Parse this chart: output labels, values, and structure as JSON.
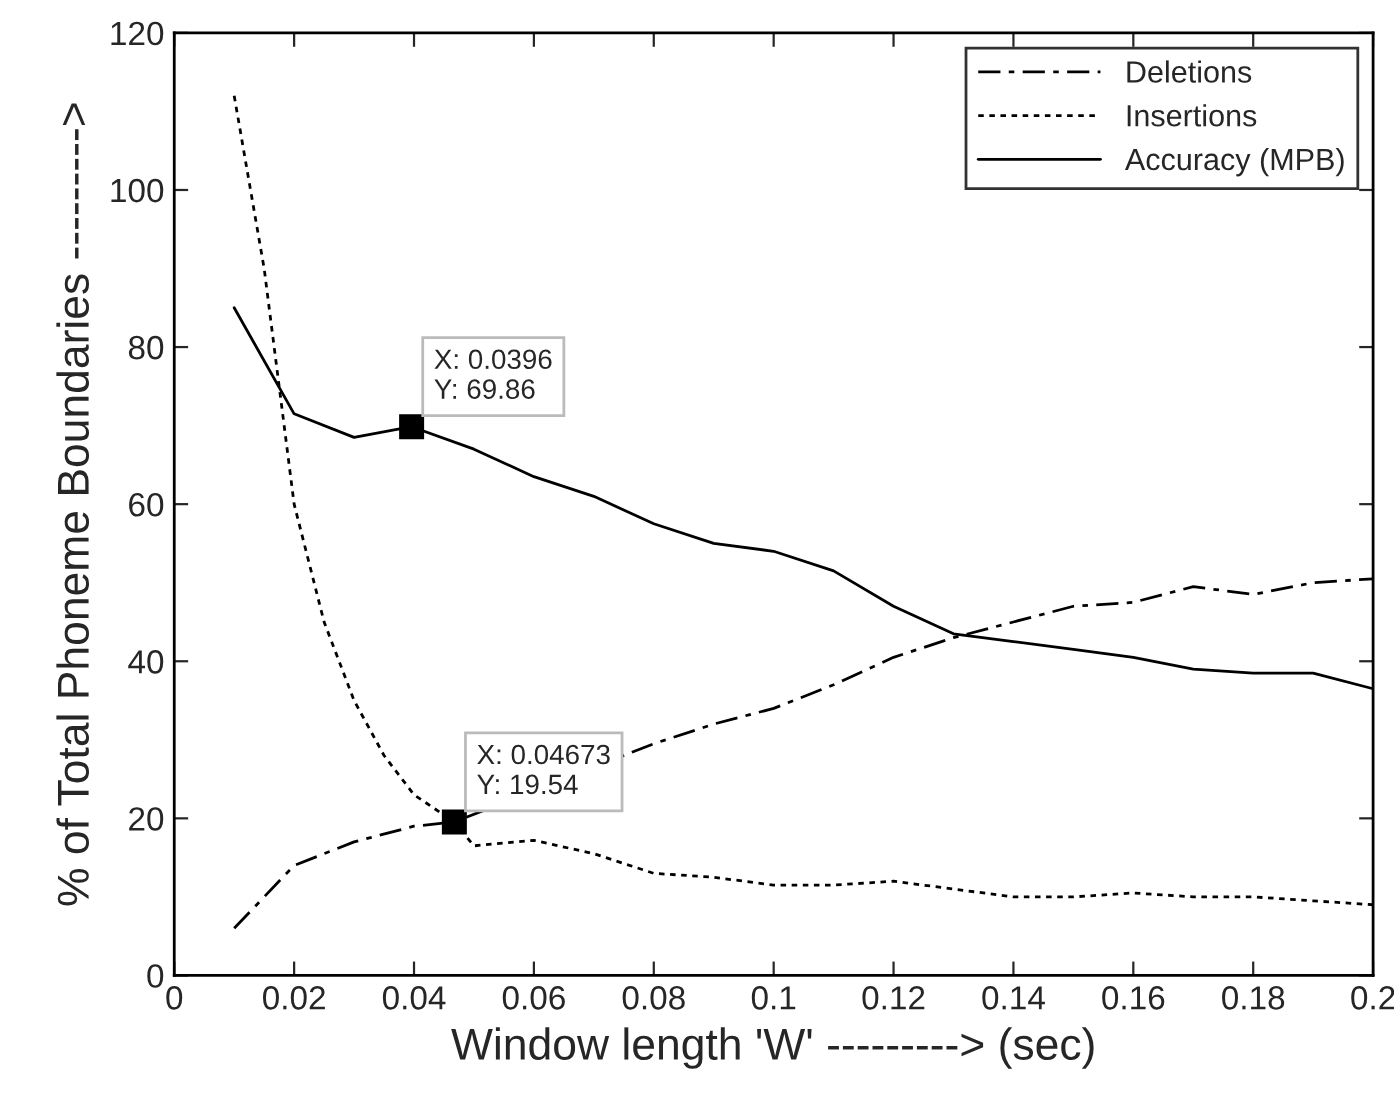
{
  "chart_data": {
    "type": "line",
    "xlabel": "Window length 'W' ---------> (sec)",
    "ylabel": "% of Total Phoneme Boundaries --------->",
    "xlim": [
      0,
      0.2
    ],
    "ylim": [
      0,
      120
    ],
    "xticks": [
      0,
      0.02,
      0.04,
      0.06,
      0.08,
      0.1,
      0.12,
      0.14,
      0.16,
      0.18,
      0.2
    ],
    "yticks": [
      0,
      20,
      40,
      60,
      80,
      100,
      120
    ],
    "grid": false,
    "legend": "top right",
    "marker": "none",
    "series": [
      {
        "name": "Deletions",
        "color": "#000000",
        "line_style": "dashdot",
        "x": [
          0.01,
          0.02,
          0.03,
          0.04,
          0.04673,
          0.05,
          0.06,
          0.07,
          0.08,
          0.09,
          0.1,
          0.11,
          0.12,
          0.13,
          0.14,
          0.15,
          0.16,
          0.17,
          0.18,
          0.19,
          0.2
        ],
        "values": [
          6,
          14,
          17,
          19,
          19.54,
          null,
          null,
          null,
          29.5,
          32,
          34,
          37,
          40.5,
          43,
          45,
          47,
          47.5,
          49.5,
          48.5,
          50,
          50.5
        ]
      },
      {
        "name": "Insertions",
        "color": "#000000",
        "line_style": "dotted",
        "x": [
          0.01,
          0.015,
          0.02,
          0.025,
          0.03,
          0.035,
          0.04,
          0.04673,
          0.05,
          0.06,
          0.07,
          0.08,
          0.09,
          0.1,
          0.11,
          0.12,
          0.13,
          0.14,
          0.15,
          0.16,
          0.17,
          0.18,
          0.19,
          0.2
        ],
        "values": [
          112,
          90,
          60,
          45,
          35,
          28,
          23,
          19.54,
          16.5,
          17.2,
          15.5,
          13,
          12.5,
          11.5,
          11.5,
          12,
          11,
          10,
          10,
          10.5,
          10,
          10,
          9.5,
          9
        ]
      },
      {
        "name": "Accuracy (MPB)",
        "color": "#000000",
        "line_style": "solid",
        "x": [
          0.01,
          0.02,
          0.03,
          0.0396,
          0.05,
          0.06,
          0.07,
          0.08,
          0.09,
          0.1,
          0.11,
          0.12,
          0.13,
          0.14,
          0.15,
          0.16,
          0.17,
          0.18,
          0.19,
          0.2
        ],
        "values": [
          85,
          71.5,
          68.5,
          69.86,
          67,
          63.5,
          61,
          57.5,
          55,
          54,
          51.5,
          47,
          43.5,
          42.5,
          41.5,
          40.5,
          39,
          38.5,
          38.5,
          36.5
        ]
      }
    ],
    "annotations": [
      {
        "text": "X: 0.0396\nY: 69.86",
        "x": 0.0396,
        "y": 69.86
      },
      {
        "text": "X: 0.04673\nY: 19.54",
        "x": 0.04673,
        "y": 19.54
      }
    ]
  }
}
